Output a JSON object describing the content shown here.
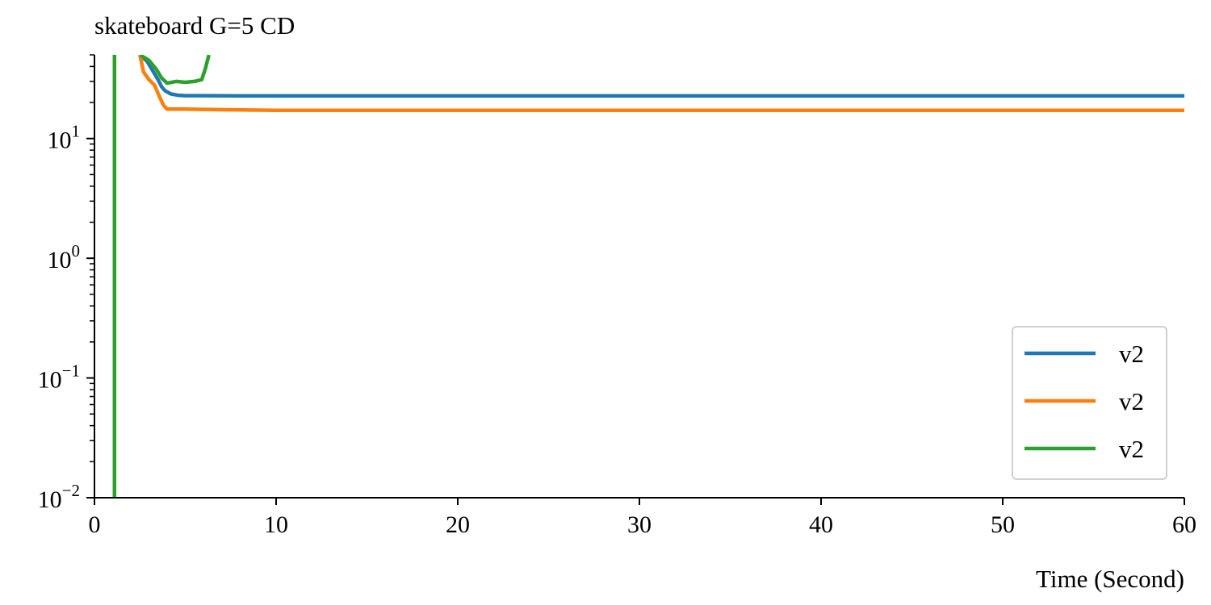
{
  "chart_data": {
    "type": "line",
    "title": "skateboard G=5 CD",
    "xlabel": "Time (Second)",
    "ylabel": "",
    "xlim": [
      0,
      60
    ],
    "ylim": [
      0.01,
      50
    ],
    "yscale": "log",
    "xticks": [
      0,
      10,
      20,
      30,
      40,
      50,
      60
    ],
    "xtick_labels": [
      "0",
      "10",
      "20",
      "30",
      "40",
      "50",
      "60"
    ],
    "yticks": [
      0.01,
      0.1,
      1,
      10
    ],
    "ytick_labels": [
      {
        "base": "10",
        "exp": "−2"
      },
      {
        "base": "10",
        "exp": "−1"
      },
      {
        "base": "10",
        "exp": "0"
      },
      {
        "base": "10",
        "exp": "1"
      }
    ],
    "grid": false,
    "legend_position": "lower right",
    "series": [
      {
        "name": "v2",
        "color": "#1f77b4",
        "x": [
          2.5,
          2.9,
          3.2,
          3.5,
          3.7,
          3.9,
          4.2,
          4.6,
          5.0,
          6.0,
          8.0,
          12.0,
          20.0,
          40.0,
          60.0
        ],
        "y": [
          50,
          44,
          37,
          31,
          27,
          25,
          23.6,
          23.0,
          22.8,
          22.8,
          22.7,
          22.7,
          22.7,
          22.7,
          22.7
        ]
      },
      {
        "name": "v2",
        "color": "#ff7f0e",
        "x": [
          2.5,
          2.7,
          3.0,
          3.3,
          3.6,
          3.8,
          4.0,
          5.0,
          7.0,
          10.0,
          20.0,
          40.0,
          60.0
        ],
        "y": [
          50,
          36,
          31,
          28,
          22,
          19,
          17.6,
          17.6,
          17.4,
          17.2,
          17.2,
          17.2,
          17.2
        ]
      },
      {
        "name": "v2",
        "color": "#2ca02c",
        "x": [
          1.1,
          1.1,
          null,
          2.5,
          3.0,
          3.4,
          3.7,
          4.0,
          4.5,
          5.0,
          5.5,
          5.9,
          6.1,
          6.3
        ],
        "y": [
          0.01,
          50,
          null,
          50,
          45,
          38,
          32,
          29,
          30,
          29.5,
          30,
          31,
          38,
          50
        ]
      }
    ]
  }
}
